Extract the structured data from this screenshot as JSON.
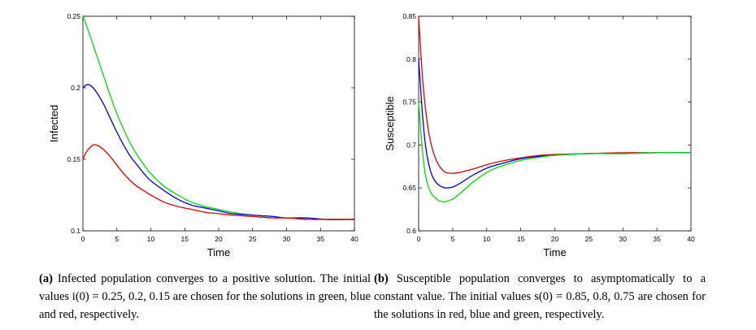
{
  "chart_data": [
    {
      "type": "line",
      "id": "a",
      "title": "",
      "xlabel": "Time",
      "ylabel": "Infected",
      "xlim": [
        0,
        40
      ],
      "ylim": [
        0.1,
        0.25
      ],
      "xticks": [
        "0",
        "5",
        "10",
        "15",
        "20",
        "25",
        "30",
        "35",
        "40"
      ],
      "yticks": [
        "0.1",
        "0.15",
        "0.2",
        "0.25"
      ],
      "x": [
        0,
        0.5,
        1,
        1.5,
        2,
        3,
        4,
        5,
        6,
        7,
        8,
        9,
        10,
        12,
        14,
        16,
        18,
        20,
        22,
        25,
        28,
        30,
        33,
        36,
        40
      ],
      "series": [
        {
          "name": "green",
          "color": "#00dd00",
          "values": [
            0.25,
            0.244,
            0.237,
            0.23,
            0.223,
            0.209,
            0.195,
            0.182,
            0.171,
            0.161,
            0.153,
            0.146,
            0.14,
            0.131,
            0.125,
            0.12,
            0.117,
            0.115,
            0.113,
            0.111,
            0.11,
            0.109,
            0.109,
            0.108,
            0.108
          ]
        },
        {
          "name": "blue",
          "color": "#0000dd",
          "values": [
            0.2,
            0.202,
            0.202,
            0.2,
            0.197,
            0.189,
            0.179,
            0.169,
            0.16,
            0.152,
            0.146,
            0.14,
            0.135,
            0.128,
            0.122,
            0.118,
            0.116,
            0.114,
            0.112,
            0.111,
            0.11,
            0.109,
            0.109,
            0.108,
            0.108
          ]
        },
        {
          "name": "red",
          "color": "#dd0000",
          "values": [
            0.15,
            0.155,
            0.158,
            0.16,
            0.16,
            0.157,
            0.152,
            0.146,
            0.14,
            0.135,
            0.131,
            0.128,
            0.125,
            0.12,
            0.117,
            0.115,
            0.113,
            0.112,
            0.111,
            0.11,
            0.109,
            0.109,
            0.108,
            0.108,
            0.108
          ]
        }
      ]
    },
    {
      "type": "line",
      "id": "b",
      "title": "",
      "xlabel": "Time",
      "ylabel": "Susceptible",
      "xlim": [
        0,
        40
      ],
      "ylim": [
        0.6,
        0.85
      ],
      "xticks": [
        "0",
        "5",
        "10",
        "15",
        "20",
        "25",
        "30",
        "35",
        "40"
      ],
      "yticks": [
        "0.6",
        "0.65",
        "0.7",
        "0.75",
        "0.8",
        "0.85"
      ],
      "x": [
        0,
        0.3,
        0.6,
        1,
        1.5,
        2,
        2.5,
        3,
        3.5,
        4,
        5,
        6,
        7,
        8,
        10,
        12,
        15,
        18,
        20,
        25,
        30,
        35,
        40
      ],
      "series": [
        {
          "name": "red",
          "color": "#dd0000",
          "values": [
            0.85,
            0.81,
            0.776,
            0.743,
            0.714,
            0.696,
            0.684,
            0.676,
            0.671,
            0.668,
            0.667,
            0.668,
            0.67,
            0.672,
            0.677,
            0.681,
            0.685,
            0.688,
            0.689,
            0.69,
            0.691,
            0.691,
            0.691
          ]
        },
        {
          "name": "blue",
          "color": "#0000dd",
          "values": [
            0.8,
            0.765,
            0.732,
            0.7,
            0.677,
            0.664,
            0.657,
            0.653,
            0.651,
            0.65,
            0.651,
            0.655,
            0.66,
            0.665,
            0.673,
            0.678,
            0.684,
            0.687,
            0.688,
            0.69,
            0.69,
            0.691,
            0.691
          ]
        },
        {
          "name": "green",
          "color": "#00dd00",
          "values": [
            0.75,
            0.718,
            0.69,
            0.665,
            0.65,
            0.642,
            0.638,
            0.635,
            0.634,
            0.634,
            0.637,
            0.643,
            0.65,
            0.657,
            0.668,
            0.675,
            0.682,
            0.686,
            0.688,
            0.69,
            0.69,
            0.691,
            0.691
          ]
        }
      ]
    }
  ],
  "captions": {
    "a": {
      "tag": "(a)",
      "text": "Infected population converges to a positive solution. The initial values i(0) = 0.25, 0.2, 0.15 are chosen for the solutions in green, blue and red, respectively."
    },
    "b": {
      "tag": "(b)",
      "text": "Susceptible population converges to asymptomatically to a constant value. The initial values s(0) = 0.85, 0.8, 0.75 are chosen for the solutions in red, blue and green, respectively."
    }
  }
}
